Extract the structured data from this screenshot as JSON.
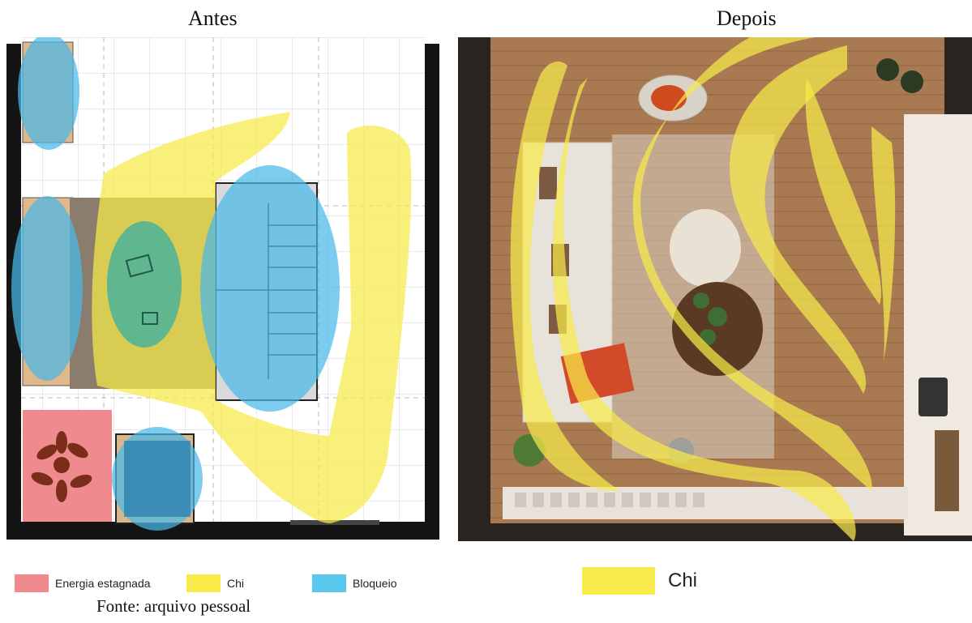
{
  "titles": {
    "left": "Antes",
    "right": "Depois"
  },
  "colors": {
    "energia": "#f08a8e",
    "chi": "#f7ea4a",
    "bloqueio": "#5bc7ee",
    "wood": "#a97a52",
    "wall": "#141414"
  },
  "legend_left": [
    {
      "key": "energia",
      "label": "Energia estagnada"
    },
    {
      "key": "chi",
      "label": "Chi"
    },
    {
      "key": "bloqueio",
      "label": "Bloqueio"
    }
  ],
  "legend_right": {
    "key": "chi",
    "label": "Chi"
  },
  "source": "Fonte: arquivo pessoal"
}
